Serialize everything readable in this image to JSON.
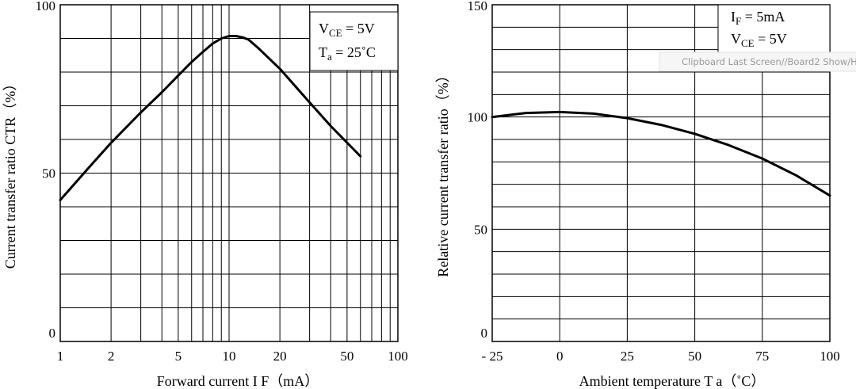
{
  "chart_data": [
    {
      "type": "line",
      "title": "",
      "xlabel": "Forward current I F（mA）",
      "ylabel": "Current transfer ratio CTR（%）",
      "xscale": "log",
      "xlim": [
        1,
        100
      ],
      "ylim": [
        0,
        100
      ],
      "grid": true,
      "x_ticks": [
        "1",
        "2",
        "5",
        "10",
        "20",
        "50",
        "100"
      ],
      "y_ticks": [
        "100",
        "50",
        "0"
      ],
      "annotation": {
        "line1": {
          "main": "V",
          "sub": "CE",
          "rest": " = 5V"
        },
        "line2": {
          "main": "T",
          "sub": "a",
          "rest": " = 25˚C"
        }
      },
      "series": [
        {
          "x": [
            1,
            1.5,
            2,
            3,
            4,
            5,
            6,
            7,
            8,
            9,
            10,
            11,
            12,
            13,
            15,
            20,
            30,
            40,
            60
          ],
          "y": [
            42,
            52,
            59,
            68,
            74,
            79,
            83,
            86,
            88.5,
            90,
            90.7,
            90.7,
            90.3,
            89.7,
            87,
            81,
            71,
            64,
            55
          ]
        }
      ]
    },
    {
      "type": "line",
      "title": "",
      "xlabel": "Ambient temperature T a（˚C）",
      "ylabel": "Relative current transfer ratio（%）",
      "xlim": [
        -25,
        100
      ],
      "ylim": [
        0,
        150
      ],
      "grid": true,
      "x_ticks": [
        "- 25",
        "0",
        "25",
        "50",
        "75",
        "100"
      ],
      "y_ticks": [
        "150",
        "100",
        "50",
        "0"
      ],
      "annotation": {
        "line1": {
          "main": "I",
          "sub": "F",
          "rest": " = 5mA"
        },
        "line2": {
          "main": "V",
          "sub": "CE",
          "rest": " = 5V"
        }
      },
      "series": [
        {
          "x": [
            -25,
            -12.5,
            0,
            12.5,
            25,
            37.5,
            50,
            62.5,
            75,
            87.5,
            100
          ],
          "y": [
            100,
            101.8,
            102.2,
            101.5,
            99.5,
            96.5,
            92.5,
            87.5,
            81.5,
            74,
            65
          ]
        }
      ]
    }
  ],
  "overlay_text": "Clipboard Last Screen//Board2 Show/H"
}
